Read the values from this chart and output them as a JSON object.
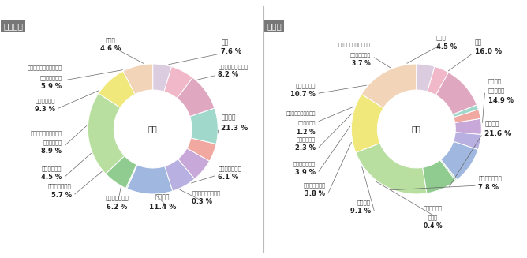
{
  "left_title": "教養学部",
  "right_title": "大学院",
  "center_label": "職業",
  "left_data": {
    "labels": [
      "教員",
      "公務員・団体職員等",
      "会社員等",
      "自営業・自由業",
      "農林水産業等従事者",
      "看護師等",
      "専業主婦(夫)",
      "パートタイマー",
      "アルバイト等",
      "他大学・専門学校等に在籍する学生",
      "定年等退職者",
      "無職(専業主婦・定年等退職者以外)",
      "その他"
    ],
    "values": [
      7.6,
      8.2,
      21.3,
      6.1,
      0.3,
      11.4,
      6.2,
      5.7,
      4.5,
      8.9,
      9.3,
      5.9,
      4.6
    ],
    "colors": [
      "#f2d5b8",
      "#f0e87a",
      "#b8dfa0",
      "#90cc90",
      "#b5e0b5",
      "#a0b8e0",
      "#b8b0e0",
      "#c8a8d8",
      "#f0a8a0",
      "#a0d8cc",
      "#e0a8c0",
      "#f0b8c8",
      "#dccce0"
    ]
  },
  "right_data": {
    "labels": [
      "教員",
      "公務員・団体職員等",
      "会社員等",
      "自営業・自由業",
      "農林水産業等従事者",
      "看護師等",
      "専業主婦(夫)",
      "パートタイマー",
      "アルバイト等",
      "他大学・専門学校等に在籍する学生",
      "定年等退職者",
      "無職(専業主婦・定年等退職者以外)",
      "その他"
    ],
    "values": [
      16.0,
      14.9,
      21.6,
      7.8,
      0.4,
      9.1,
      3.8,
      3.9,
      2.3,
      1.2,
      10.7,
      3.7,
      4.5
    ],
    "colors": [
      "#f2d5b8",
      "#f0e87a",
      "#b8dfa0",
      "#90cc90",
      "#b5e0b5",
      "#a0b8e0",
      "#b8b0e0",
      "#c8a8d8",
      "#f0a8a0",
      "#a0d8cc",
      "#e0a8c0",
      "#f0b8c8",
      "#dccce0"
    ]
  },
  "bg_color": "#ffffff",
  "title_bg": "#777777",
  "title_color": "#ffffff"
}
